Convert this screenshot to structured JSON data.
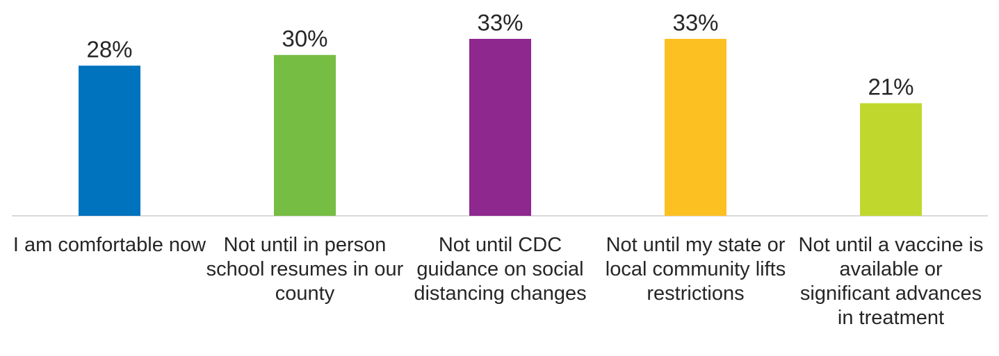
{
  "chart_data": {
    "type": "bar",
    "categories": [
      "I am comfortable now",
      "Not until in person school resumes in our county",
      "Not until CDC guidance on social distancing changes",
      "Not until my state or local community lifts restrictions",
      "Not until a vaccine is available or significant advances in treatment"
    ],
    "values": [
      28,
      30,
      33,
      33,
      21
    ],
    "data_labels": [
      "28%",
      "30%",
      "33%",
      "33%",
      "21%"
    ],
    "colors": [
      "#0073BE",
      "#76BD43",
      "#8E278E",
      "#FDC022",
      "#C0D82E"
    ],
    "ylim": [
      0,
      35
    ],
    "grid": false,
    "legend": "none"
  }
}
